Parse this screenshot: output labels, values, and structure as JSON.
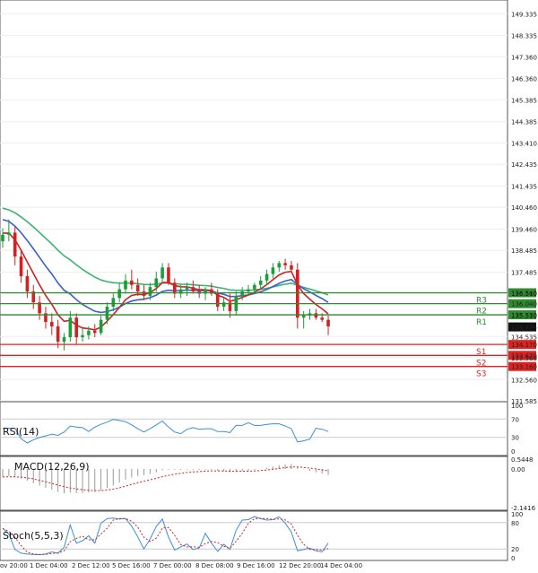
{
  "chart_data": {
    "type": "candlestick",
    "instrument_timeframe": "hourly",
    "price_axis": {
      "ticks": [
        "149.335",
        "148.335",
        "147.360",
        "146.360",
        "145.385",
        "144.385",
        "143.410",
        "142.435",
        "141.435",
        "140.460",
        "139.460",
        "138.485",
        "137.485",
        "136.510",
        "135.510",
        "134.535",
        "133.560",
        "132.560",
        "131.585"
      ],
      "range": [
        131.585,
        149.8
      ]
    },
    "x_axis": {
      "ticks": [
        "ov 20:00",
        "1 Dec 04:00",
        "2 Dec 12:00",
        "5 Dec 16:00",
        "7 Dec 00:00",
        "8 Dec 08:00",
        "9 Dec 16:00",
        "12 Dec 20:00",
        "14 Dec 04:00"
      ]
    },
    "current_price": "134.974",
    "levels": [
      {
        "name": "R3",
        "price": "136.540",
        "value": 136.54,
        "color": "#2e8b2e"
      },
      {
        "name": "R2",
        "price": "136.040",
        "value": 136.04,
        "color": "#2e8b2e"
      },
      {
        "name": "R1",
        "price": "135.530",
        "value": 135.53,
        "color": "#2e8b2e"
      },
      {
        "name": "S1",
        "price": "134.170",
        "value": 134.17,
        "color": "#dd2222"
      },
      {
        "name": "S2",
        "price": "133.670",
        "value": 133.67,
        "color": "#dd2222"
      },
      {
        "name": "S3",
        "price": "133.160",
        "value": 133.16,
        "color": "#dd2222"
      }
    ],
    "candles": [
      [
        138.9,
        139.5,
        138.6,
        139.2
      ],
      [
        139.2,
        139.9,
        138.9,
        139.3
      ],
      [
        139.3,
        139.6,
        137.8,
        138.2
      ],
      [
        138.2,
        138.5,
        137.0,
        137.3
      ],
      [
        137.3,
        137.6,
        136.3,
        136.6
      ],
      [
        136.6,
        136.9,
        135.8,
        136.1
      ],
      [
        136.1,
        136.4,
        135.3,
        135.6
      ],
      [
        135.6,
        135.9,
        134.9,
        135.2
      ],
      [
        135.2,
        135.6,
        134.6,
        135.0
      ],
      [
        135.0,
        135.3,
        134.0,
        134.3
      ],
      [
        134.3,
        134.7,
        133.9,
        134.5
      ],
      [
        134.5,
        135.7,
        134.3,
        135.4
      ],
      [
        135.4,
        135.6,
        134.2,
        134.5
      ],
      [
        134.5,
        134.9,
        134.3,
        134.6
      ],
      [
        134.6,
        135.0,
        134.4,
        134.8
      ],
      [
        134.8,
        135.1,
        134.5,
        134.7
      ],
      [
        134.7,
        135.5,
        134.6,
        135.3
      ],
      [
        135.3,
        136.1,
        135.1,
        135.9
      ],
      [
        135.9,
        136.5,
        135.7,
        136.3
      ],
      [
        136.3,
        137.0,
        136.1,
        136.7
      ],
      [
        136.7,
        137.4,
        136.5,
        137.1
      ],
      [
        137.1,
        137.6,
        136.7,
        136.9
      ],
      [
        136.9,
        137.2,
        136.4,
        136.6
      ],
      [
        136.6,
        136.9,
        136.2,
        136.4
      ],
      [
        136.4,
        137.0,
        136.2,
        136.8
      ],
      [
        136.8,
        137.5,
        136.6,
        137.2
      ],
      [
        137.2,
        137.9,
        137.0,
        137.7
      ],
      [
        137.7,
        137.9,
        136.9,
        137.0
      ],
      [
        137.0,
        137.2,
        136.3,
        136.5
      ],
      [
        136.5,
        136.9,
        136.3,
        136.7
      ],
      [
        136.7,
        137.0,
        136.4,
        136.8
      ],
      [
        136.8,
        137.1,
        136.5,
        136.6
      ],
      [
        136.6,
        136.9,
        136.3,
        136.5
      ],
      [
        136.5,
        136.8,
        136.2,
        136.7
      ],
      [
        136.7,
        137.0,
        136.4,
        136.5
      ],
      [
        136.5,
        136.7,
        135.7,
        135.9
      ],
      [
        135.9,
        136.3,
        135.7,
        136.1
      ],
      [
        136.1,
        136.5,
        135.4,
        135.7
      ],
      [
        135.7,
        136.6,
        135.5,
        136.4
      ],
      [
        136.4,
        136.8,
        136.2,
        136.6
      ],
      [
        136.6,
        136.9,
        136.4,
        136.7
      ],
      [
        136.7,
        137.0,
        136.5,
        136.9
      ],
      [
        136.9,
        137.3,
        136.7,
        137.1
      ],
      [
        137.1,
        137.6,
        136.9,
        137.4
      ],
      [
        137.4,
        137.9,
        137.2,
        137.7
      ],
      [
        137.7,
        138.0,
        137.5,
        137.9
      ],
      [
        137.9,
        138.1,
        137.6,
        137.8
      ],
      [
        137.8,
        138.0,
        137.5,
        137.6
      ],
      [
        137.6,
        137.9,
        134.9,
        135.4
      ],
      [
        135.4,
        135.7,
        134.9,
        135.5
      ],
      [
        135.5,
        135.8,
        135.3,
        135.6
      ],
      [
        135.6,
        135.8,
        135.3,
        135.4
      ],
      [
        135.4,
        135.6,
        135.2,
        135.3
      ],
      [
        135.3,
        135.5,
        134.6,
        135.0
      ]
    ],
    "indicators": [
      {
        "name": "EMA green",
        "color": "#3cb371"
      },
      {
        "name": "EMA blue",
        "color": "#3a5fcd"
      },
      {
        "name": "EMA red",
        "color": "#cc2222"
      }
    ],
    "rsi": {
      "label": "RSI(14)",
      "ticks": [
        "100",
        "70",
        "30",
        "0"
      ],
      "range": [
        0,
        100
      ]
    },
    "macd": {
      "label": "MACD(12,26,9)",
      "ticks": [
        "0.5448",
        "0.00",
        "-2.1416"
      ],
      "range": [
        -2.1416,
        0.5448
      ]
    },
    "stoch": {
      "label": "Stoch(5,5,3)",
      "ticks": [
        "100",
        "80",
        "20",
        "0"
      ],
      "range": [
        0,
        100
      ]
    }
  }
}
